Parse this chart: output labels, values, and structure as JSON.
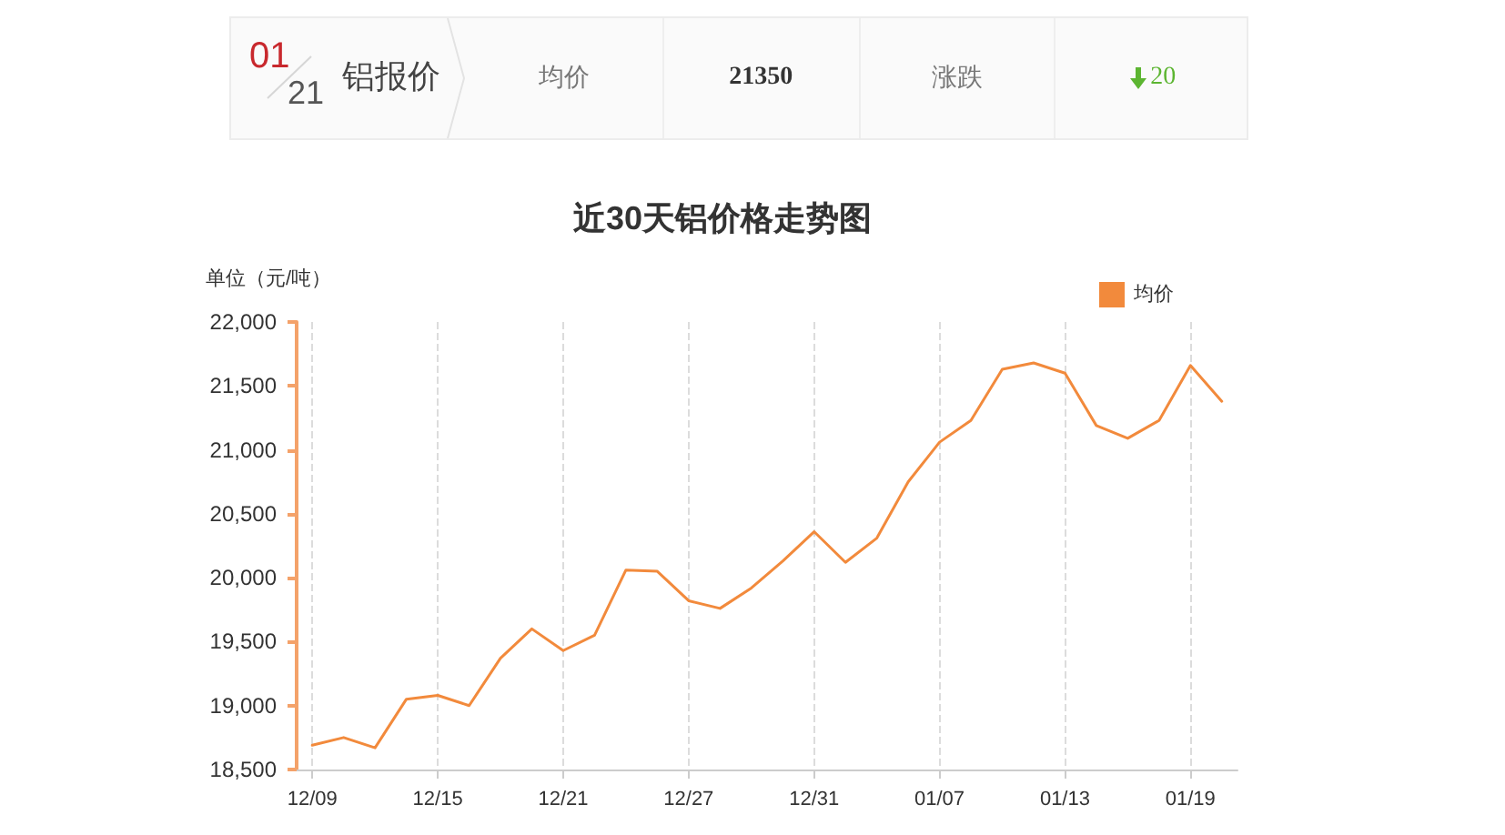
{
  "chart_data": [
    {
      "type": "other",
      "title": "铝报价",
      "annotations": [
        "01",
        "21",
        "均价",
        "21350",
        "涨跌",
        "20"
      ]
    },
    {
      "type": "line",
      "title": "近30天铝价格走势图",
      "ylabel": "单位（元/吨）",
      "categories": [
        "12/09",
        null,
        null,
        null,
        "12/15",
        null,
        null,
        null,
        "12/21",
        null,
        null,
        null,
        "12/27",
        null,
        null,
        null,
        "12/31",
        null,
        null,
        null,
        "01/07",
        null,
        null,
        null,
        "01/13",
        null,
        null,
        null,
        "01/19",
        null
      ],
      "series": [
        {
          "name": "均价",
          "color": "#f28a3c",
          "values": [
            18690,
            18750,
            18670,
            19050,
            19080,
            19000,
            19370,
            19600,
            19430,
            19550,
            20060,
            20050,
            19820,
            19760,
            19920,
            20130,
            20360,
            20120,
            20310,
            20750,
            21060,
            21230,
            21630,
            21680,
            21600,
            21190,
            21090,
            21230,
            21660,
            21380
          ]
        }
      ],
      "ylim": [
        18500,
        22000
      ],
      "yticks": [
        {
          "value": 18500,
          "label": "18,500"
        },
        {
          "value": 19000,
          "label": "19,000"
        },
        {
          "value": 19500,
          "label": "19,500"
        },
        {
          "value": 20000,
          "label": "20,000"
        },
        {
          "value": 20500,
          "label": "20,500"
        },
        {
          "value": 21000,
          "label": "21,000"
        },
        {
          "value": 21500,
          "label": "21,500"
        },
        {
          "value": 22000,
          "label": "22,000"
        }
      ],
      "grid": "x",
      "legend": "top right",
      "marker": "none"
    }
  ]
}
